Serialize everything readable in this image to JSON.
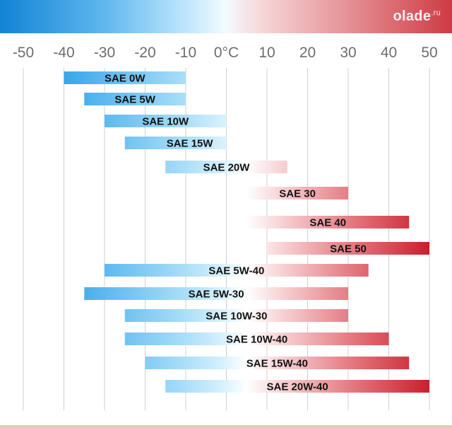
{
  "logo": {
    "text": "olade",
    "tld": ".ru"
  },
  "colors": {
    "cold": "#37a6ea",
    "light_cold": "#d9f2fd",
    "warm": "#f7d0d2",
    "hot": "#c8202c",
    "grid": "#d0d0d0",
    "tick_text": "#6d6d6d"
  },
  "chart_data": {
    "type": "bar",
    "orientation": "horizontal-range",
    "title": "",
    "xlabel": "",
    "ylabel": "",
    "xlim": [
      -50,
      50
    ],
    "x_ticks": [
      {
        "value": -50,
        "label": "-50"
      },
      {
        "value": -40,
        "label": "-40"
      },
      {
        "value": -30,
        "label": "-30"
      },
      {
        "value": -20,
        "label": "-20"
      },
      {
        "value": -10,
        "label": "-10"
      },
      {
        "value": 0,
        "label": "0°C"
      },
      {
        "value": 10,
        "label": "10"
      },
      {
        "value": 20,
        "label": "20"
      },
      {
        "value": 30,
        "label": "30"
      },
      {
        "value": 40,
        "label": "40"
      },
      {
        "value": 50,
        "label": "50"
      }
    ],
    "grid": true,
    "bars": [
      {
        "label": "SAE 0W",
        "from": -40,
        "to": -10
      },
      {
        "label": "SAE 5W",
        "from": -35,
        "to": -10
      },
      {
        "label": "SAE 10W",
        "from": -30,
        "to": 0
      },
      {
        "label": "SAE 15W",
        "from": -25,
        "to": 0
      },
      {
        "label": "SAE 20W",
        "from": -15,
        "to": 15
      },
      {
        "label": "SAE 30",
        "from": 5,
        "to": 30
      },
      {
        "label": "SAE 40",
        "from": 5,
        "to": 45
      },
      {
        "label": "SAE 50",
        "from": 10,
        "to": 50
      },
      {
        "label": "SAE 5W-40",
        "from": -30,
        "to": 35
      },
      {
        "label": "SAE 5W-30",
        "from": -35,
        "to": 30
      },
      {
        "label": "SAE 10W-30",
        "from": -25,
        "to": 30
      },
      {
        "label": "SAE 10W-40",
        "from": -25,
        "to": 40
      },
      {
        "label": "SAE 15W-40",
        "from": -20,
        "to": 45
      },
      {
        "label": "SAE 20W-40",
        "from": -15,
        "to": 50
      }
    ]
  }
}
